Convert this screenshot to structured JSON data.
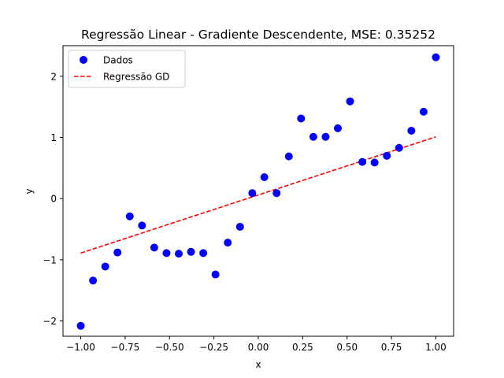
{
  "chart_data": {
    "type": "scatter",
    "title": "Regressão Linear - Gradiente Descendente, MSE: 0.35252",
    "xlabel": "x",
    "ylabel": "y",
    "xlim": [
      -1.1,
      1.1
    ],
    "ylim": [
      -2.25,
      2.5
    ],
    "xticks": [
      -1.0,
      -0.75,
      -0.5,
      -0.25,
      0.0,
      0.25,
      0.5,
      0.75,
      1.0
    ],
    "xtick_labels": [
      "−1.00",
      "−0.75",
      "−0.50",
      "−0.25",
      "0.00",
      "0.25",
      "0.50",
      "0.75",
      "1.00"
    ],
    "yticks": [
      -2,
      -1,
      0,
      1,
      2
    ],
    "ytick_labels": [
      "−2",
      "−1",
      "0",
      "1",
      "2"
    ],
    "grid": false,
    "legend_position": "top-left",
    "series": [
      {
        "name": "Dados",
        "kind": "scatter",
        "color": "#0000ff",
        "x": [
          -1.0,
          -0.931,
          -0.862,
          -0.793,
          -0.724,
          -0.655,
          -0.586,
          -0.517,
          -0.448,
          -0.379,
          -0.31,
          -0.241,
          -0.172,
          -0.103,
          -0.034,
          0.034,
          0.103,
          0.172,
          0.241,
          0.31,
          0.379,
          0.448,
          0.517,
          0.586,
          0.655,
          0.724,
          0.793,
          0.862,
          0.931,
          1.0
        ],
        "y": [
          -2.08,
          -1.34,
          -1.11,
          -0.88,
          -0.29,
          -0.44,
          -0.8,
          -0.89,
          -0.9,
          -0.87,
          -0.89,
          -1.24,
          -0.72,
          -0.46,
          0.09,
          0.35,
          0.09,
          0.69,
          1.31,
          1.01,
          1.01,
          1.15,
          1.59,
          0.6,
          0.59,
          0.7,
          0.83,
          1.11,
          1.42,
          2.31
        ]
      },
      {
        "name": "Regressão GD",
        "kind": "line",
        "style": "dashed",
        "color": "#ff0000",
        "x": [
          -1.0,
          1.0
        ],
        "y": [
          -0.89,
          1.01
        ]
      }
    ]
  }
}
